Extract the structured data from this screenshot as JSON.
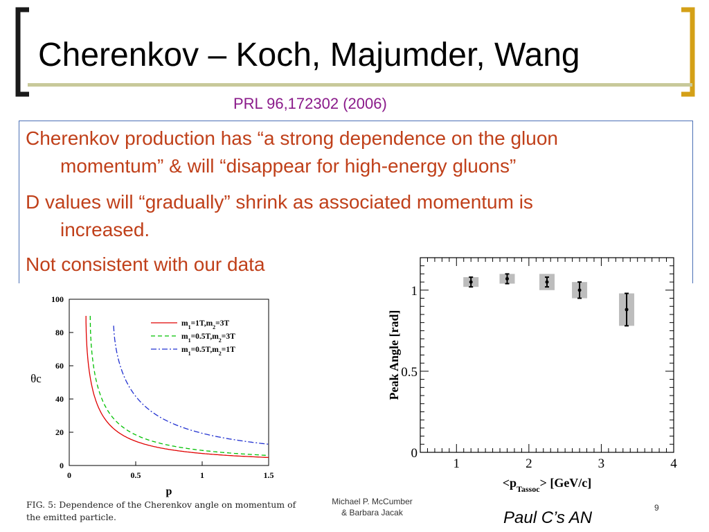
{
  "slide": {
    "title": "Cherenkov – Koch, Majumder, Wang",
    "subtitle": "PRL 96,172302 (2006)",
    "bullets": [
      {
        "line1": "Cherenkov production has “a strong dependence on the gluon",
        "line2": "momentum” & will “disappear for high-energy gluons”"
      },
      {
        "line1": "D values will “gradually” shrink as associated momentum is",
        "line2": "increased."
      },
      {
        "line1": "Not consistent with our data",
        "line2": ""
      }
    ],
    "caption": "FIG. 5: Dependence of the Cherenkov angle on momentum of the emitted particle.",
    "footer_author_line1": "Michael P. McCumber",
    "footer_author_line2": "& Barbara Jacak",
    "page_number": "9",
    "credit": "Paul C’s AN",
    "colors": {
      "bullet_text": "#c0401a",
      "subtitle": "#8a1a8a",
      "rule": "#c8c99a",
      "box_border": "#4a6fb5"
    }
  },
  "chart_data": [
    {
      "type": "line",
      "title": "",
      "xlabel": "p",
      "ylabel": "θc",
      "xlim": [
        0,
        1.5
      ],
      "ylim": [
        0,
        100
      ],
      "x_ticks": [
        "0",
        "0.5",
        "1",
        "1.5"
      ],
      "y_ticks": [
        "0",
        "20",
        "40",
        "60",
        "80",
        "100"
      ],
      "legend_position": "top-right",
      "series": [
        {
          "name": "m1=1T,m2=3T",
          "legend_main": "m",
          "legend_sub1": "1",
          "legend_mid": "=1T,m",
          "legend_sub2": "2",
          "legend_end": "=3T",
          "color": "#e00000",
          "dash": "solid",
          "min_x": 0.126,
          "scale": 0.126
        },
        {
          "name": "m1=0.5T,m2=3T",
          "legend_main": "m",
          "legend_sub1": "1",
          "legend_mid": "=0.5T,m",
          "legend_sub2": "2",
          "legend_end": "=3T",
          "color": "#00c000",
          "dash": "dashed",
          "min_x": 0.158,
          "scale": 0.158
        },
        {
          "name": "m1=0.5T,m2=1T",
          "legend_main": "m",
          "legend_sub1": "1",
          "legend_mid": "=0.5T,m",
          "legend_sub2": "2",
          "legend_end": "=1T",
          "color": "#2030d0",
          "dash": "dashdot",
          "min_x": 0.315,
          "scale": 0.332
        }
      ]
    },
    {
      "type": "scatter",
      "title": "",
      "xlabel": "<pTassoc> [GeV/c]",
      "xlabel_pre": "<p",
      "xlabel_sub": "Tassoc",
      "xlabel_post": "> [GeV/c]",
      "ylabel": "Peak Angle [rad]",
      "xlim": [
        0.5,
        4
      ],
      "ylim": [
        0,
        1.2
      ],
      "x_ticks": [
        "1",
        "2",
        "3",
        "4"
      ],
      "y_ticks": [
        "0",
        "0.5",
        "1"
      ],
      "points": [
        {
          "x": 1.2,
          "y": 1.05,
          "err": 0.03,
          "sys": 0.03
        },
        {
          "x": 1.7,
          "y": 1.07,
          "err": 0.03,
          "sys": 0.03
        },
        {
          "x": 2.25,
          "y": 1.05,
          "err": 0.03,
          "sys": 0.05
        },
        {
          "x": 2.7,
          "y": 1.0,
          "err": 0.05,
          "sys": 0.05
        },
        {
          "x": 3.35,
          "y": 0.88,
          "err": 0.1,
          "sys": 0.1
        }
      ]
    }
  ]
}
